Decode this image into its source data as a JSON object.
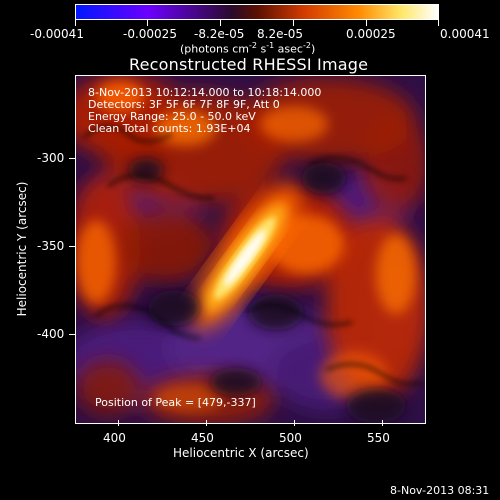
{
  "colorbar": {
    "ticks": [
      "-0.00041",
      "-0.00025",
      "-8.2e-05",
      "8.2e-05",
      "0.00025",
      "0.00041"
    ],
    "units_main": "(photons cm",
    "units_sup1": "-2",
    "units_mid": " s",
    "units_sup2": "-1",
    "units_end": " asec",
    "units_sup3": "-2",
    "units_close": ")",
    "colors": [
      "#0018ff",
      "#6b00ff",
      "#2a0a2c",
      "#5a1000",
      "#d33b00",
      "#ff8a00",
      "#ffe86a",
      "#ffffff"
    ]
  },
  "plot": {
    "title": "Reconstructed RHESSI Image",
    "info": [
      "8-Nov-2013 10:12:14.000 to 10:18:14.000",
      "Detectors: 3F 5F 6F 7F 8F 9F, Att 0",
      "Energy Range: 25.0 - 50.0 keV",
      "Clean    Total counts: 1.93E+04"
    ],
    "peak_text": "Position of Peak = [479,-337]",
    "xlabel": "Heliocentric X (arcsec)",
    "ylabel": "Heliocentric Y (arcsec)",
    "xticks": [
      "400",
      "450",
      "500",
      "550"
    ],
    "yticks": [
      "-300",
      "-350",
      "-400"
    ],
    "timestamp": "8-Nov-2013 08:31"
  },
  "colors": {
    "background": "#000000",
    "text": "#ffffff",
    "map_dark": "#2d0f45",
    "map_purple": "#5a2389",
    "map_red": "#b11f00",
    "map_orange": "#ff6200",
    "map_yellow": "#ffd54b",
    "map_white": "#ffffff"
  }
}
